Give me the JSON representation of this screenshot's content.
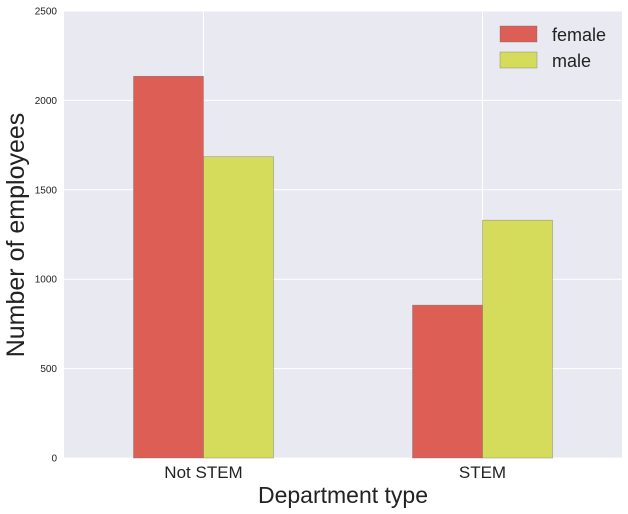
{
  "chart_data": {
    "type": "bar",
    "title": "",
    "xlabel": "Department type",
    "ylabel": "Number of employees",
    "categories": [
      "Not STEM",
      "STEM"
    ],
    "series": [
      {
        "name": "female",
        "values": [
          2135,
          855
        ],
        "color": "#dc5e55"
      },
      {
        "name": "male",
        "values": [
          1685,
          1330
        ],
        "color": "#d5dc5b"
      }
    ],
    "ylim": [
      0,
      2500
    ],
    "yticks": [
      0,
      500,
      1000,
      1500,
      2000,
      2500
    ],
    "grid": true,
    "legend_position": "top-right",
    "background_color": "#e9e9f1",
    "grid_color": "#ffffff"
  }
}
